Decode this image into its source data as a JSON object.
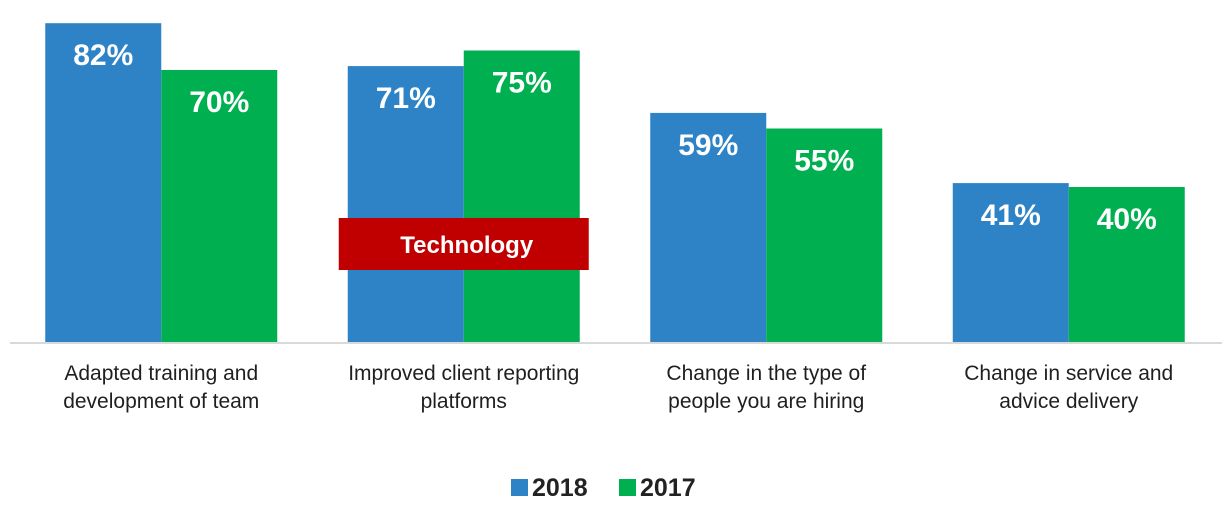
{
  "chart_data": {
    "type": "bar",
    "categories": [
      [
        "Adapted training and",
        "development of team"
      ],
      [
        "Improved client reporting",
        "platforms"
      ],
      [
        "Change in the type of",
        "people you are hiring"
      ],
      [
        "Change in service and",
        "advice delivery"
      ]
    ],
    "series": [
      {
        "name": "2018",
        "color": "#2e83c6",
        "values": [
          82,
          71,
          59,
          41
        ],
        "labels": [
          "82%",
          "71%",
          "59%",
          "41%"
        ]
      },
      {
        "name": "2017",
        "color": "#00b050",
        "values": [
          70,
          75,
          55,
          40
        ],
        "labels": [
          "70%",
          "75%",
          "55%",
          "40%"
        ]
      }
    ],
    "ylim": [
      0,
      100
    ],
    "annotation": {
      "text": "Technology",
      "color": "#c00000",
      "category_index": 1
    },
    "legend": {
      "placement": "bottom"
    },
    "grid": false,
    "axis_color": "#d9d9d9"
  }
}
